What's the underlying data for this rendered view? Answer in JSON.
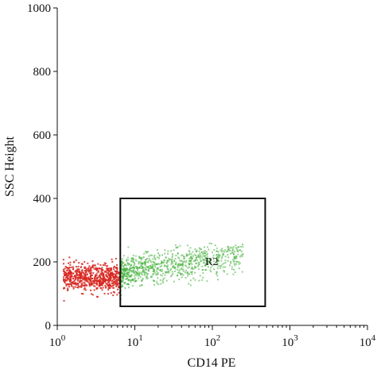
{
  "chart_data": {
    "type": "scatter",
    "title": "",
    "xlabel": "CD14 PE",
    "ylabel": "SSC Height",
    "x_scale": "log",
    "xlim": [
      1,
      10000
    ],
    "ylim": [
      0,
      1000
    ],
    "x_ticks": [
      {
        "value": 1,
        "base": "10",
        "exp": "0"
      },
      {
        "value": 10,
        "base": "10",
        "exp": "1"
      },
      {
        "value": 100,
        "base": "10",
        "exp": "2"
      },
      {
        "value": 1000,
        "base": "10",
        "exp": "3"
      },
      {
        "value": 10000,
        "base": "10",
        "exp": "4"
      }
    ],
    "y_ticks": [
      {
        "value": 0,
        "label": "0"
      },
      {
        "value": 200,
        "label": "200"
      },
      {
        "value": 400,
        "label": "400"
      },
      {
        "value": 600,
        "label": "600"
      },
      {
        "value": 800,
        "label": "800"
      },
      {
        "value": 1000,
        "label": "1000"
      }
    ],
    "grid": false,
    "legend": "none",
    "populations": [
      {
        "color": "#d7261e",
        "x_range": [
          1.2,
          6.5
        ],
        "y_center": 150,
        "y_spread": 38,
        "count": 650
      },
      {
        "color": "#3fae37",
        "x_range": [
          6.5,
          250
        ],
        "y_center": 165,
        "y_spread": 45,
        "count": 850
      }
    ],
    "gates": [
      {
        "label": "R2",
        "x_range": [
          6.5,
          480
        ],
        "y_range": [
          60,
          400
        ],
        "color": "#111111"
      }
    ]
  }
}
